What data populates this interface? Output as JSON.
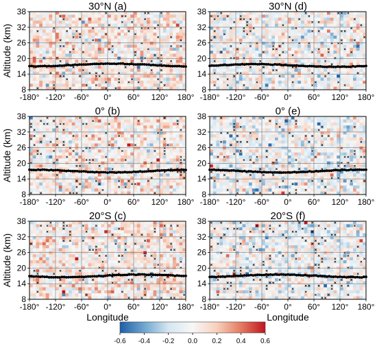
{
  "figure": {
    "colorbar": {
      "ticks": [
        "-0.6",
        "-0.4",
        "-0.2",
        "0.0",
        "0.2",
        "0.4",
        "0.6"
      ],
      "range": [
        -0.6,
        0.6
      ],
      "colors": [
        "#1f5fa8",
        "#6ea6cf",
        "#d5e6f1",
        "#f7f7f7",
        "#f8d0bd",
        "#e57a61",
        "#c0151f"
      ]
    }
  },
  "chart_data": [
    {
      "type": "heatmap",
      "title": "30°N (a)",
      "xlabel": "",
      "ylabel": "Altitude (km)",
      "xticks": [
        "-180°",
        "-120°",
        "-60°",
        "0°",
        "60°",
        "120°",
        "180°"
      ],
      "yticks": [
        "8",
        "14",
        "20",
        "26",
        "32",
        "38"
      ],
      "xlim": [
        -180,
        180
      ],
      "ylim": [
        8,
        38
      ],
      "grid": true,
      "tropopause_km": 17.5,
      "seed": 11,
      "bias": 0.05
    },
    {
      "type": "heatmap",
      "title": "30°N (d)",
      "xlabel": "",
      "ylabel": "",
      "xticks": [
        "-180°",
        "-120°",
        "-60°",
        "0°",
        "60°",
        "120°",
        "180°"
      ],
      "yticks": [
        "8",
        "14",
        "20",
        "26",
        "32",
        "38"
      ],
      "xlim": [
        -180,
        180
      ],
      "ylim": [
        8,
        38
      ],
      "grid": true,
      "tropopause_km": 17.3,
      "seed": 23,
      "bias": -0.02
    },
    {
      "type": "heatmap",
      "title": "0° (b)",
      "xlabel": "",
      "ylabel": "Altitude (km)",
      "xticks": [
        "-180°",
        "-120°",
        "-60°",
        "0°",
        "60°",
        "120°",
        "180°"
      ],
      "yticks": [
        "8",
        "14",
        "20",
        "26",
        "32",
        "38"
      ],
      "xlim": [
        -180,
        180
      ],
      "ylim": [
        8,
        38
      ],
      "grid": true,
      "tropopause_km": 17.0,
      "seed": 37,
      "bias": 0.04
    },
    {
      "type": "heatmap",
      "title": "0° (e)",
      "xlabel": "",
      "ylabel": "",
      "xticks": [
        "-180°",
        "-120°",
        "-60°",
        "0°",
        "60°",
        "120°",
        "180°"
      ],
      "yticks": [
        "8",
        "14",
        "20",
        "26",
        "32",
        "38"
      ],
      "xlim": [
        -180,
        180
      ],
      "ylim": [
        8,
        38
      ],
      "grid": true,
      "tropopause_km": 17.0,
      "seed": 41,
      "bias": -0.05
    },
    {
      "type": "heatmap",
      "title": "20°S (c)",
      "xlabel": "Longitude",
      "ylabel": "Altitude (km)",
      "xticks": [
        "-180°",
        "-120°",
        "-60°",
        "0°",
        "60°",
        "120°",
        "180°"
      ],
      "yticks": [
        "8",
        "14",
        "20",
        "26",
        "32",
        "38"
      ],
      "xlim": [
        -180,
        180
      ],
      "ylim": [
        8,
        38
      ],
      "grid": true,
      "tropopause_km": 17.0,
      "seed": 53,
      "bias": 0.06
    },
    {
      "type": "heatmap",
      "title": "20°S (f)",
      "xlabel": "Longitude",
      "ylabel": "",
      "xticks": [
        "-180°",
        "-120°",
        "-60°",
        "0°",
        "60°",
        "120°",
        "180°"
      ],
      "yticks": [
        "8",
        "14",
        "20",
        "26",
        "32",
        "38"
      ],
      "xlim": [
        -180,
        180
      ],
      "ylim": [
        8,
        38
      ],
      "grid": true,
      "tropopause_km": 17.0,
      "seed": 67,
      "bias": -0.04
    }
  ]
}
